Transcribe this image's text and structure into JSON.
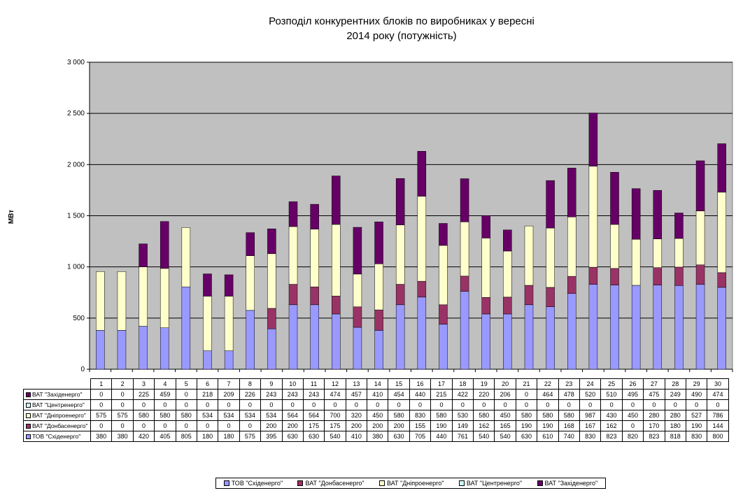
{
  "chart_data": {
    "type": "bar",
    "stacked": true,
    "title": [
      "Розподіл конкурентних  блоків по виробниках у вересні",
      "2014 року  (потужність)"
    ],
    "ylabel": "МВт",
    "xlabel": "",
    "ylim": [
      0,
      3000
    ],
    "yticks": [
      0,
      500,
      1000,
      1500,
      2000,
      2500,
      3000
    ],
    "ytick_labels": [
      "0",
      "500",
      "1 000",
      "1 500",
      "2 000",
      "2 500",
      "3 000"
    ],
    "grid": true,
    "legend_position": "bottom",
    "categories": [
      "1",
      "2",
      "3",
      "4",
      "5",
      "6",
      "7",
      "8",
      "9",
      "10",
      "11",
      "12",
      "13",
      "14",
      "15",
      "16",
      "17",
      "18",
      "19",
      "20",
      "21",
      "22",
      "23",
      "24",
      "25",
      "26",
      "27",
      "28",
      "29",
      "30"
    ],
    "series": [
      {
        "name": "ТОВ \"Східенерго\"",
        "color": "#9999ff",
        "values": [
          380,
          380,
          420,
          405,
          805,
          180,
          180,
          575,
          395,
          630,
          630,
          540,
          410,
          380,
          630,
          705,
          440,
          761,
          540,
          540,
          630,
          610,
          740,
          830,
          823,
          820,
          823,
          818,
          830,
          800
        ]
      },
      {
        "name": "ВАТ \"Донбасенерго\"",
        "color": "#993366",
        "values": [
          0,
          0,
          0,
          0,
          0,
          0,
          0,
          0,
          200,
          200,
          175,
          175,
          200,
          200,
          200,
          155,
          190,
          149,
          162,
          165,
          190,
          190,
          168,
          167,
          162,
          0,
          170,
          180,
          190,
          144
        ]
      },
      {
        "name": "ВАТ \"Дніпроенерго\"",
        "color": "#ffffcc",
        "values": [
          575,
          575,
          580,
          580,
          580,
          534,
          534,
          534,
          534,
          564,
          564,
          700,
          320,
          450,
          580,
          830,
          580,
          530,
          580,
          450,
          580,
          580,
          580,
          987,
          430,
          450,
          280,
          280,
          527,
          786
        ]
      },
      {
        "name": "ВАТ \"Центренерго\"",
        "color": "#ccffff",
        "values": [
          0,
          0,
          0,
          0,
          0,
          0,
          0,
          0,
          0,
          0,
          0,
          0,
          0,
          0,
          0,
          0,
          0,
          0,
          0,
          0,
          0,
          0,
          0,
          0,
          0,
          0,
          0,
          0,
          0,
          0
        ]
      },
      {
        "name": "ВАТ \"Західенерго\"",
        "color": "#660066",
        "values": [
          0,
          0,
          225,
          459,
          0,
          218,
          209,
          226,
          243,
          243,
          243,
          474,
          457,
          410,
          454,
          440,
          215,
          422,
          220,
          206,
          0,
          464,
          478,
          520,
          510,
          495,
          475,
          249,
          490,
          474
        ]
      }
    ],
    "table_rows_order": [
      4,
      3,
      2,
      1,
      0
    ]
  },
  "colors": {
    "plot_background": "#c0c0c0",
    "gridline": "#000000"
  }
}
